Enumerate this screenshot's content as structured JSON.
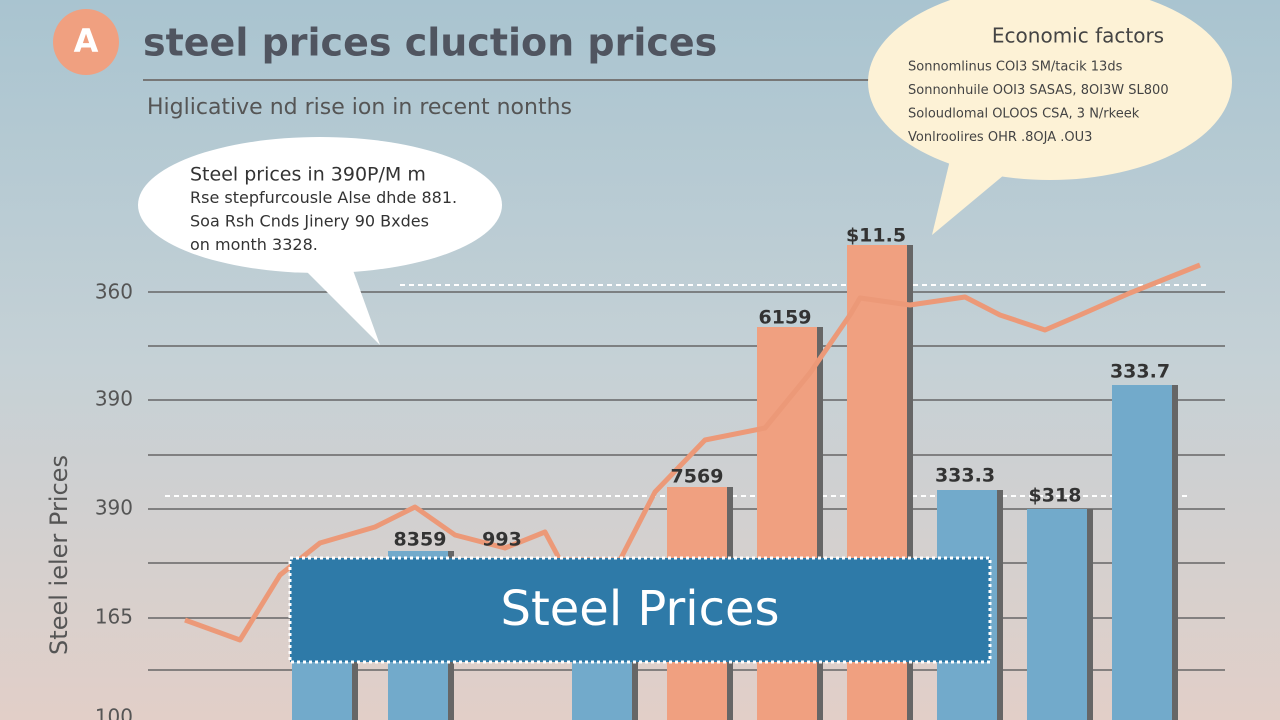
{
  "header": {
    "badge": "A",
    "title": "steel prices cluction prices",
    "subtitle": "Higlicative nd rise ion in recent nonths"
  },
  "callout": {
    "lines": [
      "Steel prices in 390P/M m",
      "Rse stepfurcousle Alse dhde 881.",
      "Soa Rsh Cnds Jinery 90 Bxdes",
      "on month 3328."
    ]
  },
  "factors": {
    "title": "Economic factors",
    "lines": [
      "Sonnomlinus COI3 SM/tacik 13ds",
      "Sonnonhuile OOI3 SASAS, 8OI3W SL800",
      "Soloudlomal OLOOS CSA, 3 N/rkeek",
      "Vonlroolires OHR .8OJA .OU3"
    ]
  },
  "axis": {
    "label": "Steel ieler Prices",
    "ticks": [
      "360",
      "390",
      "390",
      "165",
      "100"
    ]
  },
  "bar_labels": [
    "8359",
    "993",
    "7569",
    "6159",
    "$11.5",
    "333.3",
    "$318",
    "333.7"
  ],
  "banner": "Steel Prices"
}
